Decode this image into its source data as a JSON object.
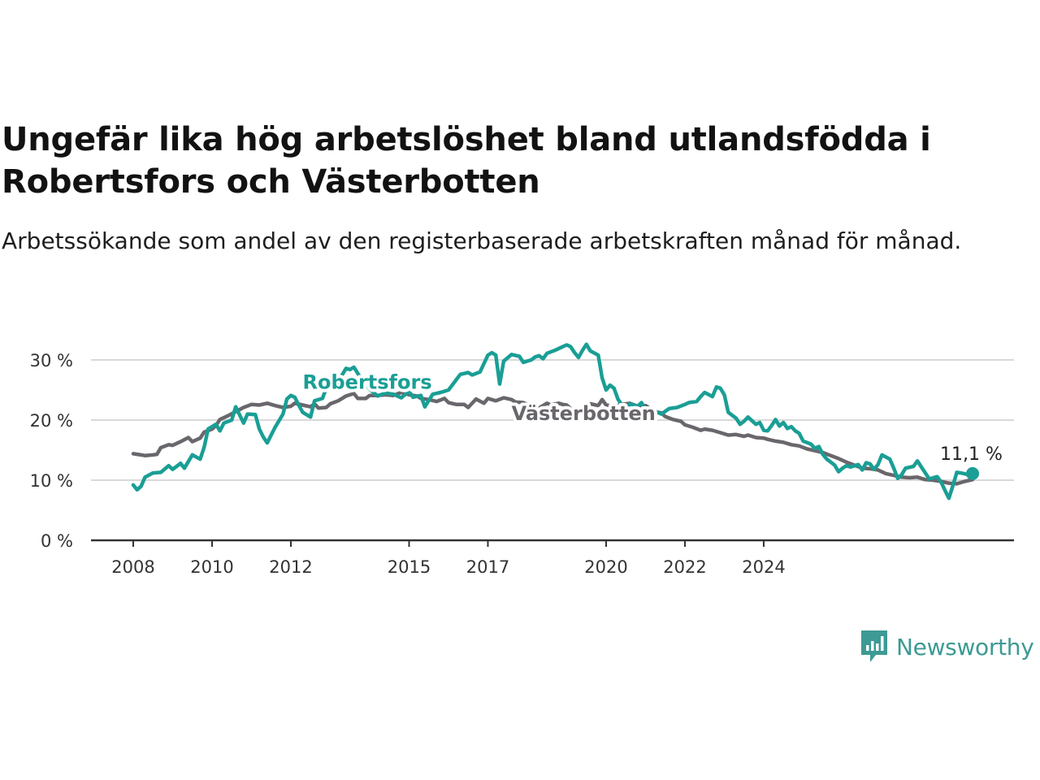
{
  "title": "Ungefär lika hög arbetslöshet bland utlandsfödda i Robertsfors och Västerbotten",
  "subtitle": "Arbetssökande som andel av den registerbaserade arbetskraften månad för månad.",
  "brand": "Newsworthy",
  "colors": {
    "robertsfors": "#1a9e95",
    "vasterbotten": "#6a676c",
    "grid": "#d9d9d9",
    "axis": "#333333",
    "brand": "#3d9a94"
  },
  "chart_data": {
    "type": "line",
    "title": "Ungefär lika hög arbetslöshet bland utlandsfödda i Robertsfors och Västerbotten",
    "subtitle": "Arbetssökande som andel av den registerbaserade arbetskraften månad för månad.",
    "ylim": [
      0,
      30
    ],
    "y_ticks": [
      0,
      10,
      20,
      30
    ],
    "y_tick_labels": [
      "0 %",
      "10 %",
      "20 %",
      "30 %"
    ],
    "x_ticks": [
      2008,
      2010,
      2012,
      2015,
      2017,
      2020,
      2022,
      2024
    ],
    "x_tick_labels": [
      "2008",
      "2010",
      "2012",
      "2015",
      "2017",
      "2020",
      "2022",
      "2024"
    ],
    "grid": true,
    "end_label": "11,1 %",
    "series": [
      {
        "name": "Robertsfors",
        "color": "#1a9e95",
        "label_at": [
          2012.3,
          25.2
        ],
        "points": [
          [
            2008.0,
            9.2
          ],
          [
            2008.1,
            8.4
          ],
          [
            2008.2,
            9.0
          ],
          [
            2008.3,
            10.5
          ],
          [
            2008.5,
            11.2
          ],
          [
            2008.7,
            11.3
          ],
          [
            2008.9,
            12.4
          ],
          [
            2009.0,
            11.8
          ],
          [
            2009.2,
            12.8
          ],
          [
            2009.3,
            12.0
          ],
          [
            2009.5,
            14.2
          ],
          [
            2009.7,
            13.5
          ],
          [
            2009.8,
            15.5
          ],
          [
            2009.9,
            18.5
          ],
          [
            2010.1,
            19.3
          ],
          [
            2010.2,
            18.2
          ],
          [
            2010.3,
            19.5
          ],
          [
            2010.5,
            20.0
          ],
          [
            2010.6,
            22.2
          ],
          [
            2010.8,
            19.5
          ],
          [
            2010.9,
            21.0
          ],
          [
            2011.1,
            20.9
          ],
          [
            2011.2,
            18.5
          ],
          [
            2011.3,
            17.2
          ],
          [
            2011.4,
            16.2
          ],
          [
            2011.5,
            17.5
          ],
          [
            2011.6,
            18.8
          ],
          [
            2011.8,
            21.0
          ],
          [
            2011.9,
            23.5
          ],
          [
            2012.0,
            24.1
          ],
          [
            2012.1,
            23.8
          ],
          [
            2012.2,
            22.5
          ],
          [
            2012.3,
            21.3
          ],
          [
            2012.5,
            20.5
          ],
          [
            2012.6,
            23.2
          ],
          [
            2012.8,
            23.6
          ],
          [
            2012.9,
            25.3
          ],
          [
            2013.0,
            27.0
          ],
          [
            2013.2,
            26.3
          ],
          [
            2013.3,
            27.5
          ],
          [
            2013.4,
            28.6
          ],
          [
            2013.5,
            28.4
          ],
          [
            2013.6,
            28.8
          ],
          [
            2013.8,
            26.7
          ],
          [
            2013.9,
            26.0
          ],
          [
            2014.0,
            25.1
          ],
          [
            2014.1,
            24.6
          ],
          [
            2014.2,
            24.0
          ],
          [
            2014.4,
            24.5
          ],
          [
            2014.6,
            24.3
          ],
          [
            2014.8,
            23.7
          ],
          [
            2015.0,
            24.8
          ],
          [
            2015.1,
            23.8
          ],
          [
            2015.3,
            24.1
          ],
          [
            2015.4,
            22.2
          ],
          [
            2015.6,
            24.3
          ],
          [
            2015.8,
            24.6
          ],
          [
            2016.0,
            25.0
          ],
          [
            2016.3,
            27.6
          ],
          [
            2016.5,
            27.9
          ],
          [
            2016.6,
            27.5
          ],
          [
            2016.8,
            28.0
          ],
          [
            2017.0,
            30.8
          ],
          [
            2017.1,
            31.2
          ],
          [
            2017.2,
            30.8
          ],
          [
            2017.3,
            26.0
          ],
          [
            2017.4,
            29.8
          ],
          [
            2017.6,
            30.9
          ],
          [
            2017.8,
            30.6
          ],
          [
            2017.9,
            29.6
          ],
          [
            2018.1,
            30.0
          ],
          [
            2018.2,
            30.5
          ],
          [
            2018.3,
            30.7
          ],
          [
            2018.4,
            30.2
          ],
          [
            2018.5,
            31.1
          ],
          [
            2018.7,
            31.6
          ],
          [
            2018.9,
            32.2
          ],
          [
            2019.0,
            32.5
          ],
          [
            2019.1,
            32.2
          ],
          [
            2019.2,
            31.2
          ],
          [
            2019.3,
            30.4
          ],
          [
            2019.4,
            31.6
          ],
          [
            2019.5,
            32.6
          ],
          [
            2019.6,
            31.5
          ],
          [
            2019.8,
            30.8
          ],
          [
            2019.9,
            27.0
          ],
          [
            2020.0,
            25.0
          ],
          [
            2020.1,
            25.8
          ],
          [
            2020.2,
            25.3
          ],
          [
            2020.3,
            23.5
          ],
          [
            2020.5,
            21.5
          ],
          [
            2020.6,
            22.7
          ],
          [
            2020.8,
            22.3
          ],
          [
            2020.9,
            22.9
          ],
          [
            2021.0,
            21.6
          ],
          [
            2021.1,
            20.9
          ],
          [
            2021.2,
            21.6
          ],
          [
            2021.4,
            21.0
          ],
          [
            2021.6,
            21.9
          ],
          [
            2021.8,
            22.1
          ],
          [
            2022.0,
            22.6
          ],
          [
            2022.1,
            22.9
          ],
          [
            2022.3,
            23.1
          ],
          [
            2022.4,
            23.9
          ],
          [
            2022.5,
            24.6
          ],
          [
            2022.7,
            23.9
          ],
          [
            2022.8,
            25.5
          ],
          [
            2022.9,
            25.3
          ],
          [
            2023.0,
            24.2
          ],
          [
            2023.1,
            21.3
          ],
          [
            2023.3,
            20.3
          ],
          [
            2023.4,
            19.3
          ],
          [
            2023.5,
            19.8
          ],
          [
            2023.6,
            20.5
          ],
          [
            2023.8,
            19.3
          ],
          [
            2023.9,
            19.6
          ],
          [
            2024.0,
            18.3
          ],
          [
            2024.1,
            18.2
          ],
          [
            2024.2,
            19.1
          ],
          [
            2024.3,
            20.1
          ],
          [
            2024.4,
            19.0
          ],
          [
            2024.5,
            19.6
          ],
          [
            2024.6,
            18.6
          ],
          [
            2024.7,
            18.9
          ],
          [
            2024.8,
            18.2
          ],
          [
            2024.9,
            17.8
          ],
          [
            2025.0,
            16.5
          ],
          [
            2025.2,
            16.0
          ],
          [
            2025.3,
            15.3
          ],
          [
            2025.4,
            15.6
          ],
          [
            2025.5,
            14.3
          ],
          [
            2025.6,
            13.5
          ],
          [
            2025.8,
            12.5
          ],
          [
            2025.9,
            11.4
          ],
          [
            2026.0,
            12.0
          ],
          [
            2026.1,
            12.4
          ],
          [
            2026.2,
            12.2
          ],
          [
            2026.4,
            12.6
          ],
          [
            2026.5,
            11.7
          ],
          [
            2026.6,
            12.9
          ],
          [
            2026.7,
            12.7
          ],
          [
            2026.8,
            11.8
          ],
          [
            2026.9,
            12.6
          ],
          [
            2027.0,
            14.2
          ],
          [
            2027.2,
            13.5
          ],
          [
            2027.3,
            12.0
          ],
          [
            2027.4,
            10.3
          ],
          [
            2027.5,
            10.9
          ],
          [
            2027.6,
            12.0
          ],
          [
            2027.8,
            12.3
          ],
          [
            2027.9,
            13.2
          ],
          [
            2028.0,
            12.2
          ],
          [
            2028.2,
            10.2
          ],
          [
            2028.4,
            10.6
          ],
          [
            2028.5,
            9.7
          ],
          [
            2028.6,
            8.3
          ],
          [
            2028.7,
            7.0
          ],
          [
            2028.8,
            9.1
          ],
          [
            2028.9,
            11.3
          ],
          [
            2029.0,
            11.2
          ],
          [
            2029.2,
            10.9
          ],
          [
            2029.3,
            11.1
          ]
        ]
      },
      {
        "name": "Västerbotten",
        "color": "#6a676c",
        "label_at": [
          2017.6,
          20.0
        ],
        "points": [
          [
            2008.0,
            14.4
          ],
          [
            2008.2,
            14.2
          ],
          [
            2008.3,
            14.1
          ],
          [
            2008.5,
            14.2
          ],
          [
            2008.6,
            14.3
          ],
          [
            2008.7,
            15.4
          ],
          [
            2008.9,
            15.9
          ],
          [
            2009.0,
            15.8
          ],
          [
            2009.2,
            16.4
          ],
          [
            2009.4,
            17.1
          ],
          [
            2009.5,
            16.4
          ],
          [
            2009.7,
            17.0
          ],
          [
            2009.8,
            18.0
          ],
          [
            2010.0,
            18.5
          ],
          [
            2010.1,
            19.1
          ],
          [
            2010.2,
            20.1
          ],
          [
            2010.4,
            20.7
          ],
          [
            2010.6,
            21.4
          ],
          [
            2010.8,
            22.1
          ],
          [
            2011.0,
            22.6
          ],
          [
            2011.2,
            22.5
          ],
          [
            2011.4,
            22.8
          ],
          [
            2011.6,
            22.4
          ],
          [
            2011.8,
            22.1
          ],
          [
            2012.0,
            22.3
          ],
          [
            2012.1,
            22.8
          ],
          [
            2012.3,
            22.5
          ],
          [
            2012.5,
            22.2
          ],
          [
            2012.6,
            22.7
          ],
          [
            2012.7,
            22.0
          ],
          [
            2012.9,
            22.1
          ],
          [
            2013.0,
            22.7
          ],
          [
            2013.2,
            23.2
          ],
          [
            2013.4,
            24.0
          ],
          [
            2013.6,
            24.4
          ],
          [
            2013.7,
            23.6
          ],
          [
            2013.9,
            23.6
          ],
          [
            2014.0,
            24.1
          ],
          [
            2014.2,
            24.1
          ],
          [
            2014.4,
            24.2
          ],
          [
            2014.6,
            24.1
          ],
          [
            2014.8,
            24.6
          ],
          [
            2015.0,
            24.2
          ],
          [
            2015.2,
            24.0
          ],
          [
            2015.3,
            23.6
          ],
          [
            2015.5,
            23.4
          ],
          [
            2015.7,
            23.1
          ],
          [
            2015.9,
            23.6
          ],
          [
            2016.0,
            22.9
          ],
          [
            2016.2,
            22.6
          ],
          [
            2016.4,
            22.6
          ],
          [
            2016.5,
            22.1
          ],
          [
            2016.7,
            23.5
          ],
          [
            2016.9,
            22.8
          ],
          [
            2017.0,
            23.6
          ],
          [
            2017.2,
            23.2
          ],
          [
            2017.4,
            23.7
          ],
          [
            2017.6,
            23.4
          ],
          [
            2017.7,
            23.0
          ],
          [
            2017.9,
            22.9
          ],
          [
            2018.1,
            22.3
          ],
          [
            2018.3,
            22.0
          ],
          [
            2018.5,
            22.8
          ],
          [
            2018.6,
            22.5
          ],
          [
            2018.8,
            22.8
          ],
          [
            2018.9,
            22.6
          ],
          [
            2019.0,
            22.5
          ],
          [
            2019.1,
            21.9
          ],
          [
            2019.3,
            21.3
          ],
          [
            2019.5,
            21.7
          ],
          [
            2019.6,
            22.7
          ],
          [
            2019.8,
            22.4
          ],
          [
            2019.9,
            23.4
          ],
          [
            2020.0,
            22.5
          ],
          [
            2020.2,
            22.3
          ],
          [
            2020.4,
            22.6
          ],
          [
            2020.6,
            22.8
          ],
          [
            2020.8,
            22.3
          ],
          [
            2021.0,
            22.4
          ],
          [
            2021.1,
            22.0
          ],
          [
            2021.2,
            21.4
          ],
          [
            2021.4,
            21.2
          ],
          [
            2021.5,
            20.6
          ],
          [
            2021.7,
            20.1
          ],
          [
            2021.9,
            19.8
          ],
          [
            2022.0,
            19.2
          ],
          [
            2022.2,
            18.8
          ],
          [
            2022.4,
            18.3
          ],
          [
            2022.5,
            18.5
          ],
          [
            2022.7,
            18.3
          ],
          [
            2022.9,
            17.9
          ],
          [
            2023.1,
            17.5
          ],
          [
            2023.3,
            17.6
          ],
          [
            2023.5,
            17.3
          ],
          [
            2023.6,
            17.5
          ],
          [
            2023.8,
            17.1
          ],
          [
            2024.0,
            17.0
          ],
          [
            2024.1,
            16.8
          ],
          [
            2024.3,
            16.5
          ],
          [
            2024.5,
            16.3
          ],
          [
            2024.7,
            15.9
          ],
          [
            2024.9,
            15.7
          ],
          [
            2025.1,
            15.2
          ],
          [
            2025.3,
            14.9
          ],
          [
            2025.5,
            14.6
          ],
          [
            2025.7,
            14.1
          ],
          [
            2025.9,
            13.6
          ],
          [
            2026.1,
            13.0
          ],
          [
            2026.3,
            12.5
          ],
          [
            2026.5,
            12.0
          ],
          [
            2026.7,
            11.9
          ],
          [
            2026.9,
            11.7
          ],
          [
            2027.1,
            11.1
          ],
          [
            2027.3,
            10.8
          ],
          [
            2027.5,
            10.5
          ],
          [
            2027.7,
            10.4
          ],
          [
            2027.9,
            10.5
          ],
          [
            2028.1,
            10.1
          ],
          [
            2028.3,
            10.0
          ],
          [
            2028.5,
            9.8
          ],
          [
            2028.7,
            9.5
          ],
          [
            2028.9,
            9.4
          ],
          [
            2029.1,
            9.8
          ],
          [
            2029.3,
            10.1
          ]
        ]
      }
    ]
  }
}
